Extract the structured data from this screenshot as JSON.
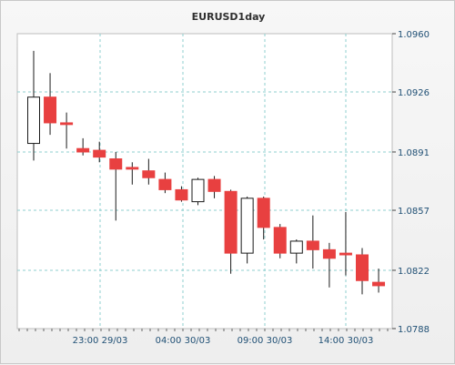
{
  "chart_data": {
    "type": "candlestick",
    "title": "EURUSD1day",
    "ylim": [
      1.0788,
      1.096
    ],
    "yticks": [
      "1.0960",
      "1.0926",
      "1.0891",
      "1.0857",
      "1.0822",
      "1.0788"
    ],
    "xticks": [
      "23:00 29/03",
      "04:00 30/03",
      "09:00 30/03",
      "14:00 30/03"
    ],
    "grid": true,
    "colors": {
      "bullish": "#ffffff",
      "bearish": "#e84040",
      "wick": "#1a1a1a",
      "grid": "#8fcfcf"
    },
    "candles": [
      {
        "o": 1.0896,
        "h": 1.095,
        "l": 1.0886,
        "c": 1.0923
      },
      {
        "o": 1.0923,
        "h": 1.0937,
        "l": 1.0901,
        "c": 1.0908
      },
      {
        "o": 1.0908,
        "h": 1.0914,
        "l": 1.0893,
        "c": 1.0907
      },
      {
        "o": 1.0893,
        "h": 1.0899,
        "l": 1.0889,
        "c": 1.0891
      },
      {
        "o": 1.0892,
        "h": 1.0897,
        "l": 1.0885,
        "c": 1.0888
      },
      {
        "o": 1.0887,
        "h": 1.0891,
        "l": 1.0851,
        "c": 1.0881
      },
      {
        "o": 1.0882,
        "h": 1.0885,
        "l": 1.0872,
        "c": 1.0881
      },
      {
        "o": 1.088,
        "h": 1.0887,
        "l": 1.0872,
        "c": 1.0876
      },
      {
        "o": 1.0875,
        "h": 1.0879,
        "l": 1.0867,
        "c": 1.0869
      },
      {
        "o": 1.0869,
        "h": 1.0871,
        "l": 1.0862,
        "c": 1.0863
      },
      {
        "o": 1.0862,
        "h": 1.0876,
        "l": 1.086,
        "c": 1.0875
      },
      {
        "o": 1.0875,
        "h": 1.0877,
        "l": 1.0864,
        "c": 1.0868
      },
      {
        "o": 1.0868,
        "h": 1.0869,
        "l": 1.082,
        "c": 1.0832
      },
      {
        "o": 1.0832,
        "h": 1.0865,
        "l": 1.0826,
        "c": 1.0864
      },
      {
        "o": 1.0864,
        "h": 1.0865,
        "l": 1.084,
        "c": 1.0847
      },
      {
        "o": 1.0847,
        "h": 1.0849,
        "l": 1.0829,
        "c": 1.0832
      },
      {
        "o": 1.0832,
        "h": 1.084,
        "l": 1.0826,
        "c": 1.0839
      },
      {
        "o": 1.0839,
        "h": 1.0854,
        "l": 1.0823,
        "c": 1.0834
      },
      {
        "o": 1.0834,
        "h": 1.0838,
        "l": 1.0812,
        "c": 1.0829
      },
      {
        "o": 1.0832,
        "h": 1.0856,
        "l": 1.0819,
        "c": 1.0831
      },
      {
        "o": 1.0831,
        "h": 1.0835,
        "l": 1.0808,
        "c": 1.0816
      },
      {
        "o": 1.0815,
        "h": 1.0823,
        "l": 1.0809,
        "c": 1.0813
      }
    ]
  }
}
